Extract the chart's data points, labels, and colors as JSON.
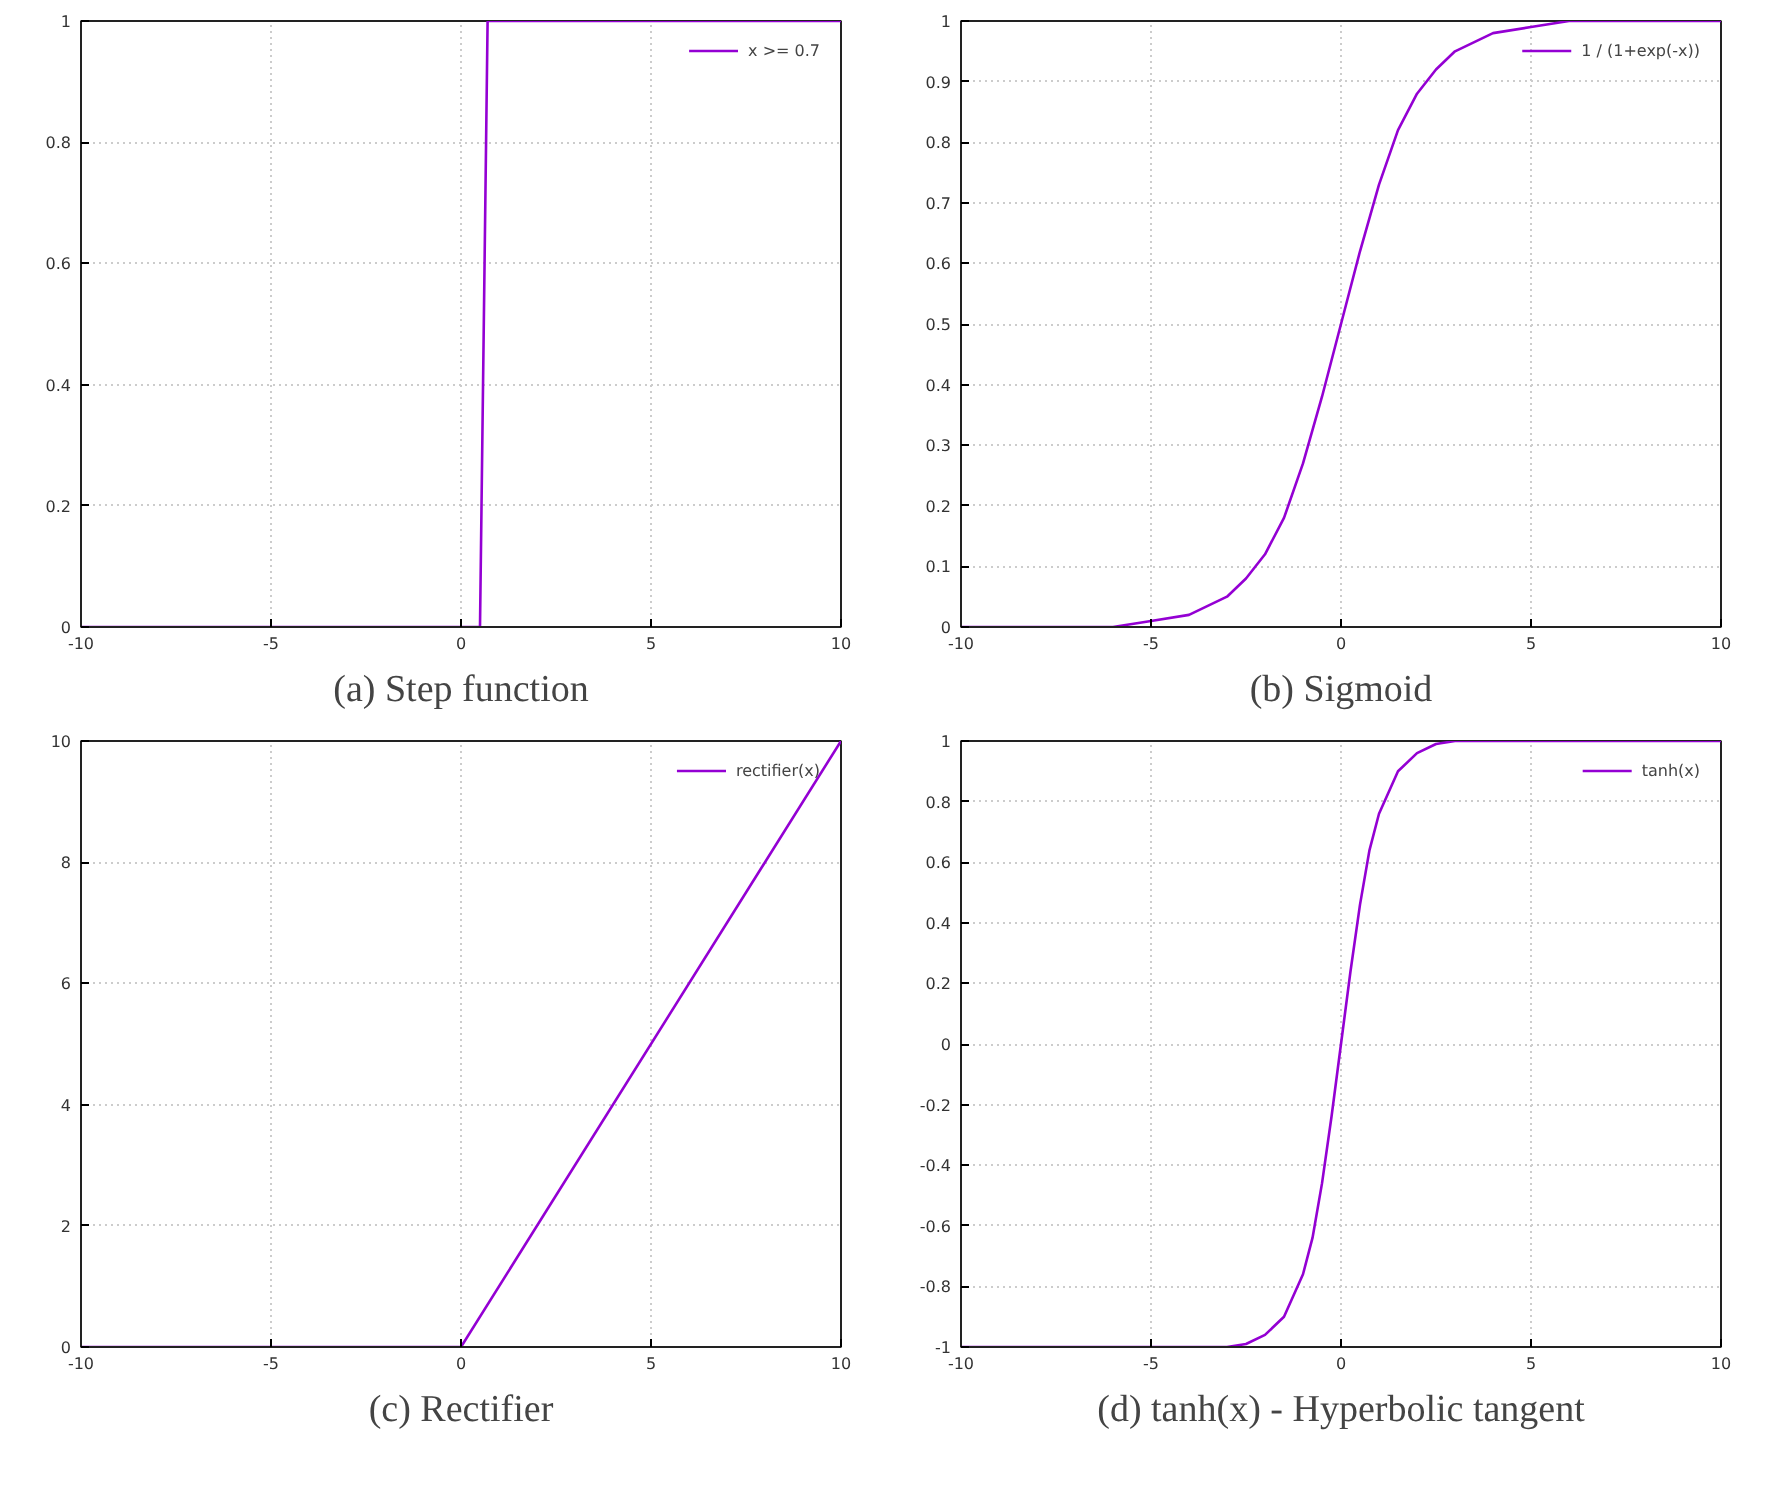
{
  "chart_data": [
    {
      "type": "line",
      "title": "(a) Step function",
      "x": [
        -10,
        0.5,
        0.7,
        10
      ],
      "series": [
        {
          "name": "x >= 0.7",
          "color": "#9400d3",
          "values": [
            0,
            0,
            1,
            1
          ]
        }
      ],
      "xlim": [
        -10,
        10
      ],
      "ylim": [
        0,
        1
      ],
      "xticks": [
        -10,
        -5,
        0,
        5,
        10
      ],
      "yticks": [
        0,
        0.2,
        0.4,
        0.6,
        0.8,
        1
      ],
      "grid": true,
      "legend": "top right"
    },
    {
      "type": "line",
      "title": "(b) Sigmoid",
      "x": [
        -10,
        -8,
        -6,
        -5,
        -4,
        -3,
        -2.5,
        -2,
        -1.5,
        -1,
        -0.5,
        0,
        0.5,
        1,
        1.5,
        2,
        2.5,
        3,
        4,
        5,
        6,
        8,
        10
      ],
      "series": [
        {
          "name": "1 / (1+exp(-x))",
          "color": "#9400d3",
          "values": [
            0,
            0,
            0,
            0.01,
            0.02,
            0.05,
            0.08,
            0.12,
            0.18,
            0.27,
            0.38,
            0.5,
            0.62,
            0.73,
            0.82,
            0.88,
            0.92,
            0.95,
            0.98,
            0.99,
            1,
            1,
            1
          ]
        }
      ],
      "xlim": [
        -10,
        10
      ],
      "ylim": [
        0,
        1
      ],
      "xticks": [
        -10,
        -5,
        0,
        5,
        10
      ],
      "yticks": [
        0,
        0.1,
        0.2,
        0.3,
        0.4,
        0.5,
        0.6,
        0.7,
        0.8,
        0.9,
        1
      ],
      "grid": true,
      "legend": "top right"
    },
    {
      "type": "line",
      "title": "(c) Rectifier",
      "x": [
        -10,
        0,
        10
      ],
      "series": [
        {
          "name": "rectifier(x)",
          "color": "#9400d3",
          "values": [
            0,
            0,
            10
          ]
        }
      ],
      "xlim": [
        -10,
        10
      ],
      "ylim": [
        0,
        10
      ],
      "xticks": [
        -10,
        -5,
        0,
        5,
        10
      ],
      "yticks": [
        0,
        2,
        4,
        6,
        8,
        10
      ],
      "grid": true,
      "legend": "top right"
    },
    {
      "type": "line",
      "title": "(d) tanh(x) - Hyperbolic tangent",
      "x": [
        -10,
        -3,
        -2.5,
        -2,
        -1.5,
        -1,
        -0.75,
        -0.5,
        -0.25,
        0,
        0.25,
        0.5,
        0.75,
        1,
        1.5,
        2,
        2.5,
        3,
        10
      ],
      "series": [
        {
          "name": "tanh(x)",
          "color": "#9400d3",
          "values": [
            -1,
            -1,
            -0.99,
            -0.96,
            -0.9,
            -0.76,
            -0.64,
            -0.46,
            -0.24,
            0,
            0.24,
            0.46,
            0.64,
            0.76,
            0.9,
            0.96,
            0.99,
            1,
            1
          ]
        }
      ],
      "xlim": [
        -10,
        10
      ],
      "ylim": [
        -1,
        1
      ],
      "xticks": [
        -10,
        -5,
        0,
        5,
        10
      ],
      "yticks": [
        -1,
        -0.8,
        -0.6,
        -0.4,
        -0.2,
        0,
        0.2,
        0.4,
        0.6,
        0.8,
        1
      ],
      "grid": true,
      "legend": "top right"
    }
  ]
}
